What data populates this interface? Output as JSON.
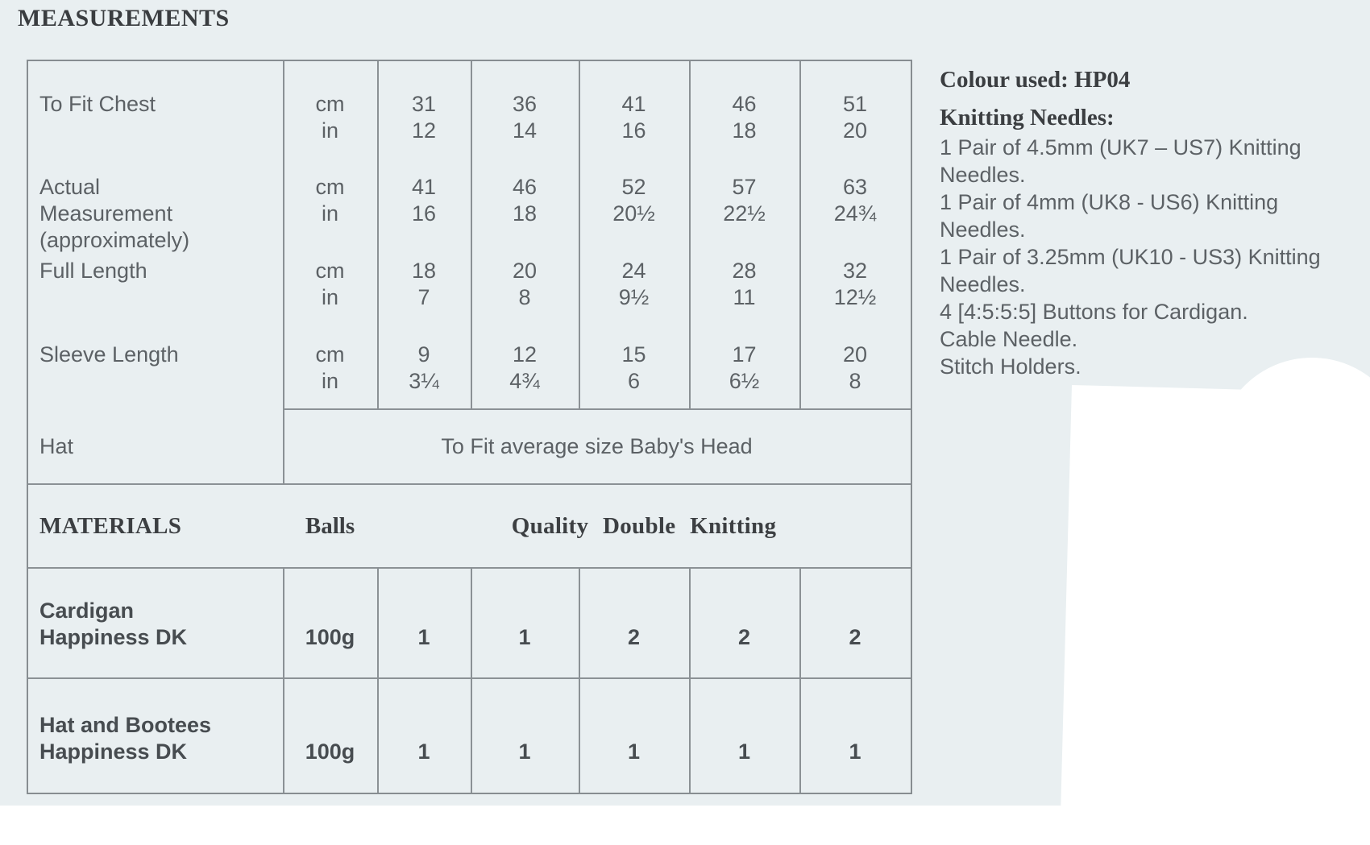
{
  "page": {
    "title": "MEASUREMENTS",
    "bg_color": "#e9eff1",
    "line_color": "#8b9195"
  },
  "measurements_table": {
    "rows": [
      {
        "label_lines": [
          "To Fit Chest"
        ],
        "units": [
          {
            "unit": "cm",
            "values": [
              "31",
              "36",
              "41",
              "46",
              "51"
            ]
          },
          {
            "unit": "in",
            "values": [
              "12",
              "14",
              "16",
              "18",
              "20"
            ]
          }
        ]
      },
      {
        "label_lines": [
          "Actual",
          "Measurement",
          "(approximately)"
        ],
        "units": [
          {
            "unit": "cm",
            "values": [
              "41",
              "46",
              "52",
              "57",
              "63"
            ]
          },
          {
            "unit": "in",
            "values": [
              "16",
              "18",
              "20½",
              "22½",
              "24¾"
            ]
          }
        ]
      },
      {
        "label_lines": [
          "Full Length"
        ],
        "units": [
          {
            "unit": "cm",
            "values": [
              "18",
              "20",
              "24",
              "28",
              "32"
            ]
          },
          {
            "unit": "in",
            "values": [
              "7",
              "8",
              "9½",
              "11",
              "12½"
            ]
          }
        ]
      },
      {
        "label_lines": [
          "Sleeve Length"
        ],
        "units": [
          {
            "unit": "cm",
            "values": [
              "9",
              "12",
              "15",
              "17",
              "20"
            ]
          },
          {
            "unit": "in",
            "values": [
              "3¼",
              "4¾",
              "6",
              "6½",
              "8"
            ]
          }
        ]
      }
    ],
    "hat_row": {
      "label": "Hat",
      "span_text": "To Fit average size Baby's Head"
    }
  },
  "materials": {
    "header": {
      "title": "MATERIALS",
      "balls_label": "Balls",
      "quality_label": "Quality Double Knitting"
    },
    "rows": [
      {
        "name_lines": [
          "Cardigan",
          "Happiness DK"
        ],
        "ball_size": "100g",
        "quantities": [
          "1",
          "1",
          "2",
          "2",
          "2"
        ]
      },
      {
        "name_lines": [
          "Hat and Bootees",
          "Happiness DK"
        ],
        "ball_size": "100g",
        "quantities": [
          "1",
          "1",
          "1",
          "1",
          "1"
        ]
      }
    ]
  },
  "side_panel": {
    "colour_used": "Colour used: HP04",
    "needles_heading": "Knitting Needles:",
    "lines": [
      "1 Pair of 4.5mm (UK7 – US7) Knitting",
      "Needles.",
      "1 Pair of 4mm (UK8 - US6) Knitting",
      "Needles.",
      "1 Pair of 3.25mm (UK10 - US3) Knitting",
      "Needles.",
      "4 [4:5:5:5] Buttons for Cardigan.",
      "Cable Needle.",
      "Stitch Holders."
    ]
  }
}
